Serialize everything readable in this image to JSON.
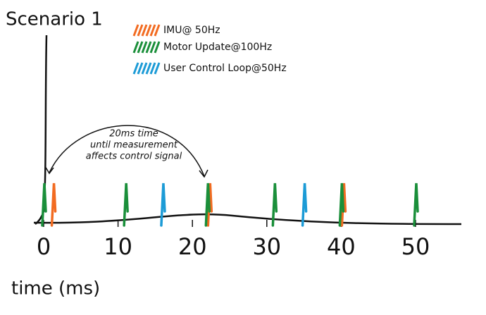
{
  "title": "Scenario 1",
  "annotation": [
    "20ms time",
    "until measurement",
    "affects control signal"
  ],
  "x_axis": {
    "label": "time (ms)",
    "xlim": [
      0,
      50
    ],
    "ticks": [
      0,
      10,
      20,
      30,
      40,
      50
    ]
  },
  "series": [
    {
      "name": "IMU@ 50Hz",
      "color": "#f26b21",
      "times": [
        1,
        22,
        40
      ]
    },
    {
      "name": "Motor Update@100Hz",
      "color": "#1a8f3a",
      "times": [
        0,
        11,
        22,
        31,
        40,
        50
      ]
    },
    {
      "name": "User Control Loop@50Hz",
      "color": "#1c9bd6",
      "times": [
        16,
        35
      ]
    }
  ]
}
